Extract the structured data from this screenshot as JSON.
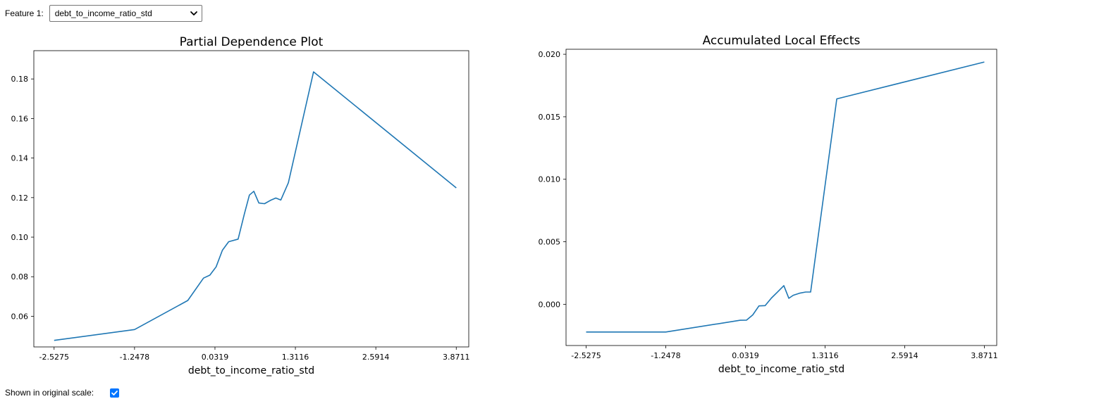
{
  "controls": {
    "feature1_label": "Feature 1:",
    "feature1_value": "debt_to_income_ratio_std",
    "original_scale_label": "Shown in original scale:",
    "original_scale_checked": true
  },
  "colors": {
    "line": "#1f77b4",
    "checkbox": "#0075ff"
  },
  "chart_data": [
    {
      "type": "line",
      "title": "Partial Dependence Plot",
      "xlabel": "debt_to_income_ratio_std",
      "ylabel": "",
      "xlim": [
        -2.85,
        4.07
      ],
      "ylim": [
        0.0445,
        0.1943
      ],
      "xticks": [
        "-2.5275",
        "-1.2478",
        "0.0319",
        "1.3116",
        "2.5914",
        "3.8711"
      ],
      "yticks": [
        "0.06",
        "0.08",
        "0.10",
        "0.12",
        "0.14",
        "0.16",
        "0.18"
      ],
      "grid": false,
      "series": [
        {
          "x": [
            -2.5275,
            -1.2478,
            -0.4,
            -0.15,
            -0.05,
            0.05,
            0.15,
            0.25,
            0.4,
            0.5,
            0.58,
            0.65,
            0.73,
            0.82,
            0.92,
            1.0,
            1.08,
            1.2,
            1.6,
            3.8711
          ],
          "y": [
            0.0478,
            0.0533,
            0.068,
            0.0793,
            0.0808,
            0.085,
            0.0934,
            0.0977,
            0.099,
            0.1118,
            0.1213,
            0.1232,
            0.1173,
            0.1169,
            0.1187,
            0.1198,
            0.1188,
            0.1275,
            0.1836,
            0.1249
          ]
        }
      ]
    },
    {
      "type": "line",
      "title": "Accumulated Local Effects",
      "xlabel": "debt_to_income_ratio_std",
      "ylabel": "",
      "xlim": [
        -2.85,
        4.07
      ],
      "ylim": [
        -0.0033,
        0.0204
      ],
      "xticks": [
        "-2.5275",
        "-1.2478",
        "0.0319",
        "1.3116",
        "2.5914",
        "3.8711"
      ],
      "yticks": [
        "0.000",
        "0.005",
        "0.010",
        "0.015",
        "0.020"
      ],
      "grid": false,
      "series": [
        {
          "x": [
            -2.5275,
            -1.2478,
            -0.05,
            0.05,
            0.15,
            0.25,
            0.35,
            0.45,
            0.55,
            0.65,
            0.73,
            0.8,
            0.9,
            1.0,
            1.08,
            1.5,
            3.8711
          ],
          "y": [
            -0.00222,
            -0.00222,
            -0.00128,
            -0.00127,
            -0.00085,
            -0.00013,
            -0.00011,
            0.0005,
            0.00099,
            0.00149,
            0.00048,
            0.00072,
            0.00088,
            0.00098,
            0.00098,
            0.01643,
            0.01938
          ]
        }
      ]
    }
  ]
}
